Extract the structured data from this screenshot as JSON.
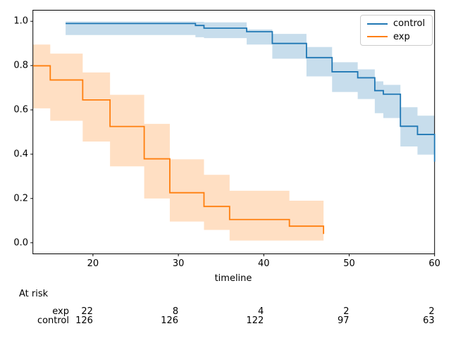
{
  "chart_data": {
    "type": "line",
    "variant": "kaplan-meier-step-with-confidence-bands",
    "title": "",
    "xlabel": "timeline",
    "ylabel": "",
    "grid": false,
    "legend_position": "upper right",
    "xlim": [
      12.97,
      60
    ],
    "ylim": [
      -0.05,
      1.05
    ],
    "xticks": [
      {
        "value": 20,
        "label": "20"
      },
      {
        "value": 30,
        "label": "30"
      },
      {
        "value": 40,
        "label": "40"
      },
      {
        "value": 50,
        "label": "50"
      },
      {
        "value": 60,
        "label": "60"
      }
    ],
    "yticks": [
      {
        "value": 0.0,
        "label": "0.0"
      },
      {
        "value": 0.2,
        "label": "0.2"
      },
      {
        "value": 0.4,
        "label": "0.4"
      },
      {
        "value": 0.6,
        "label": "0.6"
      },
      {
        "value": 0.8,
        "label": "0.8"
      },
      {
        "value": 1.0,
        "label": "1.0"
      }
    ],
    "series": [
      {
        "name": "control",
        "color": "#1f77b4",
        "band_opacity": 0.25,
        "segments_format": [
          "t_start",
          "t_end",
          "survival",
          "ci_lower",
          "ci_upper"
        ],
        "segments": [
          [
            16.8,
            32,
            0.99,
            0.938,
            0.999
          ],
          [
            32,
            33,
            0.981,
            0.928,
            0.997
          ],
          [
            33,
            38,
            0.969,
            0.924,
            0.995
          ],
          [
            38,
            41,
            0.953,
            0.895,
            0.963
          ],
          [
            41,
            45,
            0.9,
            0.831,
            0.943
          ],
          [
            45,
            48,
            0.836,
            0.751,
            0.884
          ],
          [
            48,
            51,
            0.772,
            0.681,
            0.815
          ],
          [
            51,
            53,
            0.745,
            0.649,
            0.783
          ],
          [
            53,
            54,
            0.687,
            0.585,
            0.729
          ],
          [
            54,
            56,
            0.671,
            0.563,
            0.713
          ],
          [
            56,
            58,
            0.526,
            0.435,
            0.612
          ],
          [
            58,
            60,
            0.489,
            0.398,
            0.574
          ]
        ],
        "end_drop": 0.366
      },
      {
        "name": "exp",
        "color": "#ff7f0e",
        "band_opacity": 0.25,
        "segments_format": [
          "t_start",
          "t_end",
          "survival",
          "ci_lower",
          "ci_upper"
        ],
        "segments": [
          [
            12.97,
            15,
            0.799,
            0.607,
            0.895
          ],
          [
            15,
            18.8,
            0.735,
            0.551,
            0.854
          ],
          [
            18.8,
            22,
            0.645,
            0.457,
            0.769
          ],
          [
            22,
            26,
            0.525,
            0.345,
            0.668
          ],
          [
            26,
            29,
            0.379,
            0.2,
            0.537
          ],
          [
            29,
            33,
            0.226,
            0.096,
            0.377
          ],
          [
            33,
            36,
            0.164,
            0.058,
            0.307
          ],
          [
            36,
            43,
            0.105,
            0.01,
            0.235
          ],
          [
            43,
            47,
            0.075,
            0.01,
            0.19
          ]
        ],
        "end_drop": 0.04
      }
    ]
  },
  "at_risk": {
    "header": "At risk",
    "columns": [
      20,
      30,
      40,
      50,
      60
    ],
    "rows": [
      {
        "label": "exp",
        "counts": [
          22,
          8,
          4,
          2,
          2
        ]
      },
      {
        "label": "control",
        "counts": [
          126,
          126,
          122,
          97,
          63
        ]
      }
    ]
  }
}
